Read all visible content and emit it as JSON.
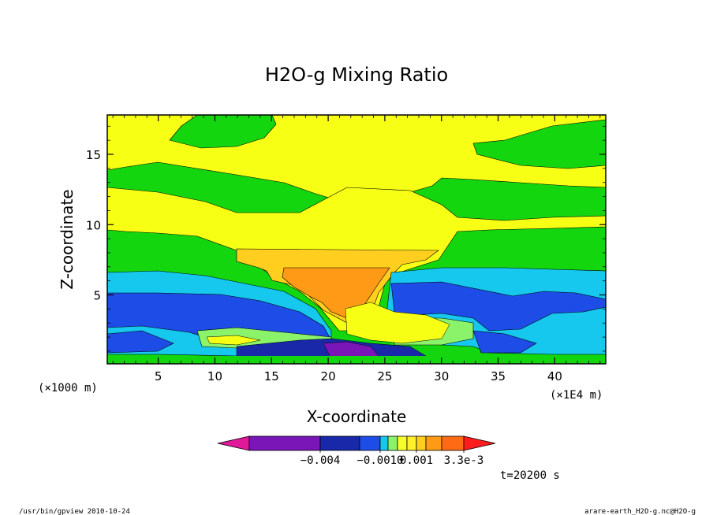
{
  "chart_data": {
    "type": "heatmap",
    "title": "H2O-g Mixing Ratio",
    "xlabel": "X-coordinate",
    "ylabel": "Z-coordinate",
    "x_unit": "(×1E4 m)",
    "y_unit": "(×1000 m)",
    "xlim": [
      0.5,
      44.5
    ],
    "ylim": [
      0.1,
      17.8
    ],
    "x_ticks": [
      5,
      10,
      15,
      20,
      25,
      30,
      35,
      40
    ],
    "y_ticks": [
      5,
      10,
      15
    ],
    "colorbar": {
      "labels": [
        "−0.004",
        "−0.0010",
        "0.001",
        "3.3e-3"
      ],
      "colors": [
        "#e0199b",
        "#7a15b8",
        "#1828a8",
        "#1d4de6",
        "#16c7ee",
        "#8bf36a",
        "#f6ff2a",
        "#fff02a",
        "#ffce1e",
        "#ff9a16",
        "#ff6a12",
        "#ff1c1c"
      ],
      "extend": "both"
    },
    "time_label": "t=20200 s",
    "grid": false
  },
  "footer": {
    "left": "/usr/bin/gpview   2010-10-24",
    "right": "arare-earth_H2O-g.nc@H2O-g"
  }
}
